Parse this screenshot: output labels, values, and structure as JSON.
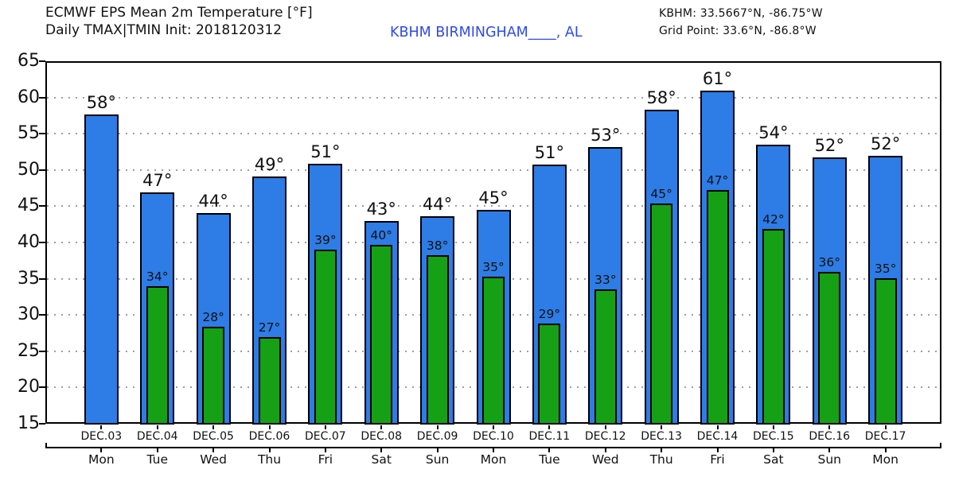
{
  "header": {
    "title_line1": "ECMWF EPS Mean 2m Temperature [°F]",
    "title_line2": "Daily TMAX|TMIN Init: 2018120312",
    "station_link": "KBHM BIRMINGHAM____, AL",
    "station_info_line1": "KBHM: 33.5667°N, -86.75°W",
    "station_info_line2": "Grid Point: 33.6°N, -86.8°W",
    "station_link_color": "#2D4BEB"
  },
  "chart_data": {
    "type": "bar",
    "title": "ECMWF EPS Mean 2m Temperature [°F]",
    "subtitle": "Daily TMAX|TMIN Init: 2018120312",
    "station": "KBHM BIRMINGHAM____, AL",
    "ylim": [
      15,
      65
    ],
    "ytick_step": 5,
    "grid": "horizontal-dotted",
    "legend_position": "none",
    "categories_date": [
      "DEC.03",
      "DEC.04",
      "DEC.05",
      "DEC.06",
      "DEC.07",
      "DEC.08",
      "DEC.09",
      "DEC.10",
      "DEC.11",
      "DEC.12",
      "DEC.13",
      "DEC.14",
      "DEC.15",
      "DEC.16",
      "DEC.17"
    ],
    "categories_weekday": [
      "Mon",
      "Tue",
      "Wed",
      "Thu",
      "Fri",
      "Sat",
      "Sun",
      "Mon",
      "Tue",
      "Wed",
      "Thu",
      "Fri",
      "Sat",
      "Sun",
      "Mon"
    ],
    "series": [
      {
        "name": "TMAX",
        "color": "#2E7CE5",
        "labels": [
          "58°",
          "47°",
          "44°",
          "49°",
          "51°",
          "43°",
          "44°",
          "45°",
          "51°",
          "53°",
          "58°",
          "61°",
          "54°",
          "52°",
          "52°"
        ],
        "values": [
          57.7,
          46.9,
          44.1,
          49.1,
          50.9,
          43.0,
          43.6,
          44.5,
          50.7,
          53.2,
          58.3,
          60.9,
          53.5,
          51.7,
          51.9
        ]
      },
      {
        "name": "TMIN",
        "color": "#16A016",
        "labels": [
          null,
          "34°",
          "28°",
          "27°",
          "39°",
          "40°",
          "38°",
          "35°",
          "29°",
          "33°",
          "45°",
          "47°",
          "42°",
          "36°",
          "35°"
        ],
        "values": [
          null,
          34.0,
          28.4,
          27.0,
          39.0,
          39.7,
          38.2,
          35.3,
          28.8,
          33.5,
          45.4,
          47.2,
          41.9,
          35.9,
          35.1
        ]
      }
    ]
  }
}
